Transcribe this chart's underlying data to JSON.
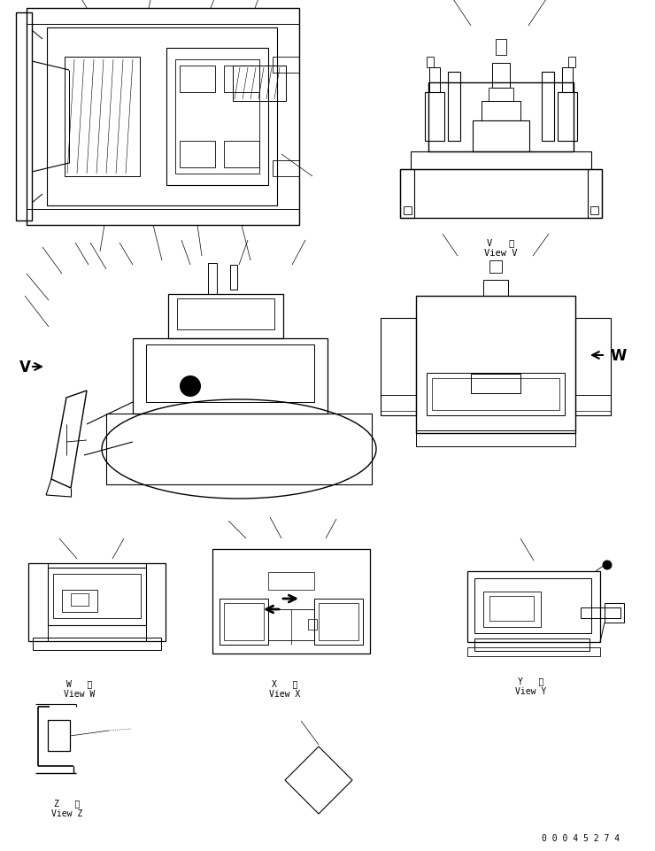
{
  "bg_color": "#ffffff",
  "line_color": "#000000",
  "fig_width": 7.4,
  "fig_height": 9.62,
  "dpi": 100,
  "part_number": "0 0 0 4 5 2 7 4",
  "views": {
    "view_v_label": [
      "V   視",
      "View V"
    ],
    "view_w_label": [
      "W   視",
      "View W"
    ],
    "view_x_label": [
      "X   視",
      "View X"
    ],
    "view_y_label": [
      "Y   視",
      "View Y"
    ],
    "view_z_label": [
      "Z   視",
      "View Z"
    ]
  }
}
